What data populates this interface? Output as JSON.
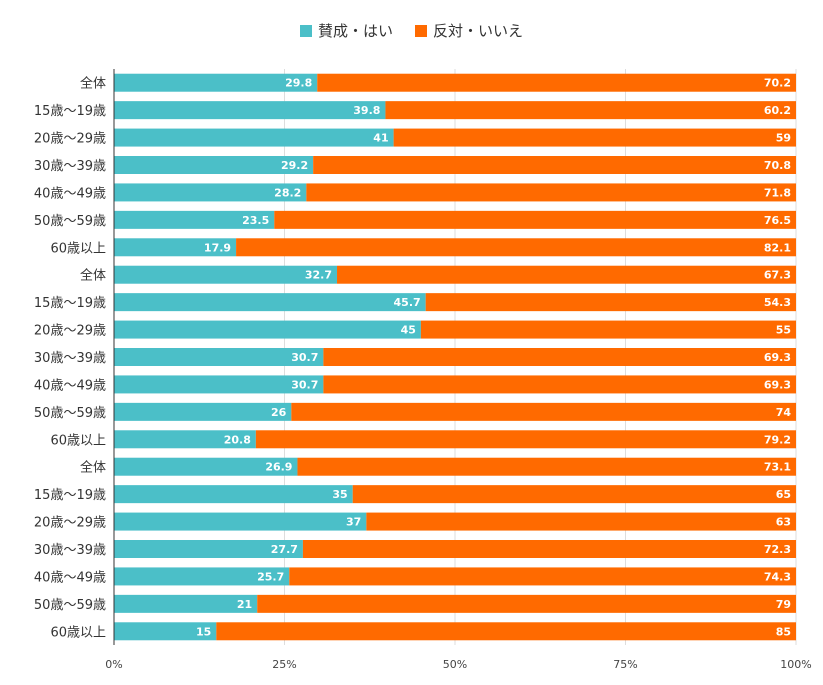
{
  "chart_data": {
    "type": "bar",
    "orientation": "horizontal",
    "stacked": true,
    "percent_stacked": true,
    "legend_position": "top",
    "grid": true,
    "xlim": [
      0,
      100
    ],
    "x_ticks": [
      "0%",
      "25%",
      "50%",
      "75%",
      "100%"
    ],
    "categories": [
      "全体",
      "15歳〜19歳",
      "20歳〜29歳",
      "30歳〜39歳",
      "40歳〜49歳",
      "50歳〜59歳",
      "60歳以上",
      "全体",
      "15歳〜19歳",
      "20歳〜29歳",
      "30歳〜39歳",
      "40歳〜49歳",
      "50歳〜59歳",
      "60歳以上",
      "全体",
      "15歳〜19歳",
      "20歳〜29歳",
      "30歳〜39歳",
      "40歳〜49歳",
      "50歳〜59歳",
      "60歳以上"
    ],
    "series": [
      {
        "name": "賛成・はい",
        "color": "#4bbfc8",
        "values": [
          29.8,
          39.8,
          41,
          29.2,
          28.2,
          23.5,
          17.9,
          32.7,
          45.7,
          45,
          30.7,
          30.7,
          26,
          20.8,
          26.9,
          35,
          37,
          27.7,
          25.7,
          21,
          15
        ]
      },
      {
        "name": "反対・いいえ",
        "color": "#ff6a00",
        "values": [
          70.2,
          60.2,
          59,
          70.8,
          71.8,
          76.5,
          82.1,
          67.3,
          54.3,
          55,
          69.3,
          69.3,
          74,
          79.2,
          73.1,
          65,
          63,
          72.3,
          74.3,
          79,
          85
        ]
      }
    ]
  }
}
